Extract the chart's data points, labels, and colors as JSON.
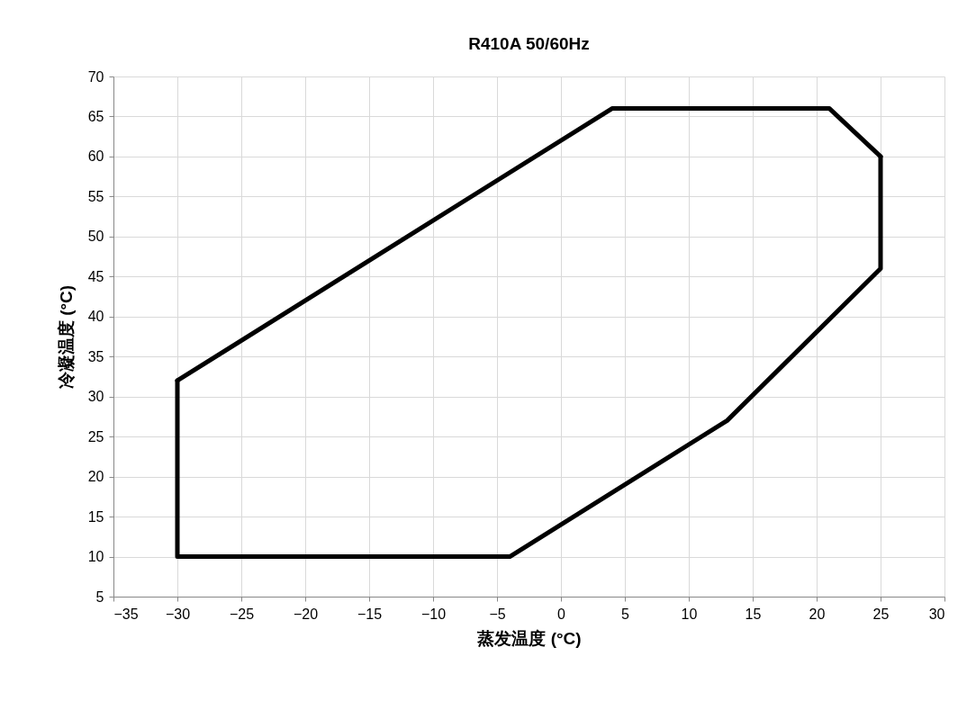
{
  "chart_data": {
    "type": "line",
    "title": "R410A  50/60Hz",
    "xlabel": "蒸发温度 (°C)",
    "ylabel": "冷凝温度 (°C)",
    "series": [
      {
        "color": "#000000",
        "x": [
          -30,
          -30,
          -4,
          13,
          25,
          25
        ],
        "values": [
          32,
          10,
          10,
          27,
          46,
          60
        ]
      },
      {
        "color": "#000000",
        "x": [
          -30,
          4,
          21,
          25
        ],
        "values": [
          32,
          66,
          66,
          60
        ]
      }
    ],
    "xlim": [
      -35,
      30
    ],
    "xticks": [
      -35,
      -30,
      -25,
      -20,
      -15,
      -10,
      -5,
      0,
      5,
      10,
      15,
      20,
      25,
      30
    ],
    "ylim": [
      5,
      70
    ],
    "yticks": [
      5,
      10,
      15,
      20,
      25,
      30,
      35,
      40,
      45,
      50,
      55,
      60,
      65,
      70
    ],
    "grid": true,
    "line_style": "solid"
  }
}
